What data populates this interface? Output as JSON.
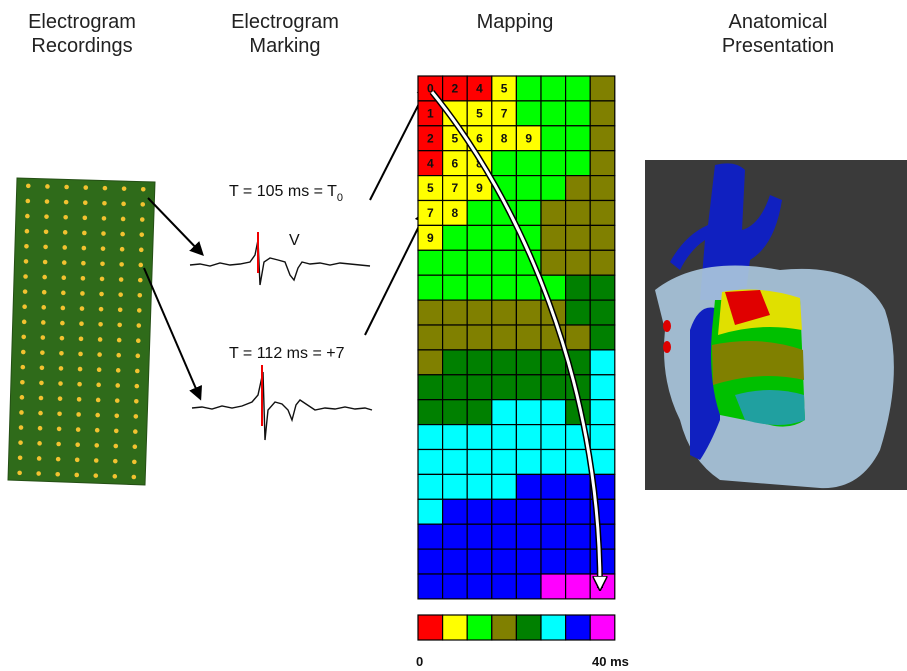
{
  "columns": [
    {
      "title_lines": [
        "Electrogram",
        "Recordings"
      ]
    },
    {
      "title_lines": [
        "Electrogram",
        "Marking"
      ]
    },
    {
      "title_lines": [
        "Mapping"
      ]
    },
    {
      "title_lines": [
        "Anatomical",
        "Presentation"
      ]
    }
  ],
  "marking": {
    "label_1": "T = 105 ms = T",
    "label_1_subscript": "0",
    "wave_label": "V",
    "label_2": "T = 112 ms = +7"
  },
  "mapping": {
    "cell_labels": [
      [
        0,
        2,
        4,
        5,
        null,
        null,
        null,
        null
      ],
      [
        1,
        null,
        5,
        7,
        null,
        null,
        null,
        null
      ],
      [
        2,
        5,
        6,
        8,
        9,
        null,
        null,
        null
      ],
      [
        4,
        6,
        8,
        null,
        null,
        null,
        null,
        null
      ],
      [
        5,
        7,
        9,
        null,
        null,
        null,
        null,
        null
      ],
      [
        7,
        8,
        null,
        null,
        null,
        null,
        null,
        null
      ],
      [
        9,
        null,
        null,
        null,
        null,
        null,
        null,
        null
      ]
    ],
    "colorbar": {
      "colors": [
        "#ff0000",
        "#ffff00",
        "#00ff00",
        "#808000",
        "#008000",
        "#00ffff",
        "#0000ff",
        "#ff00ff"
      ],
      "min_label": "0",
      "max_label": "40 ms"
    }
  }
}
